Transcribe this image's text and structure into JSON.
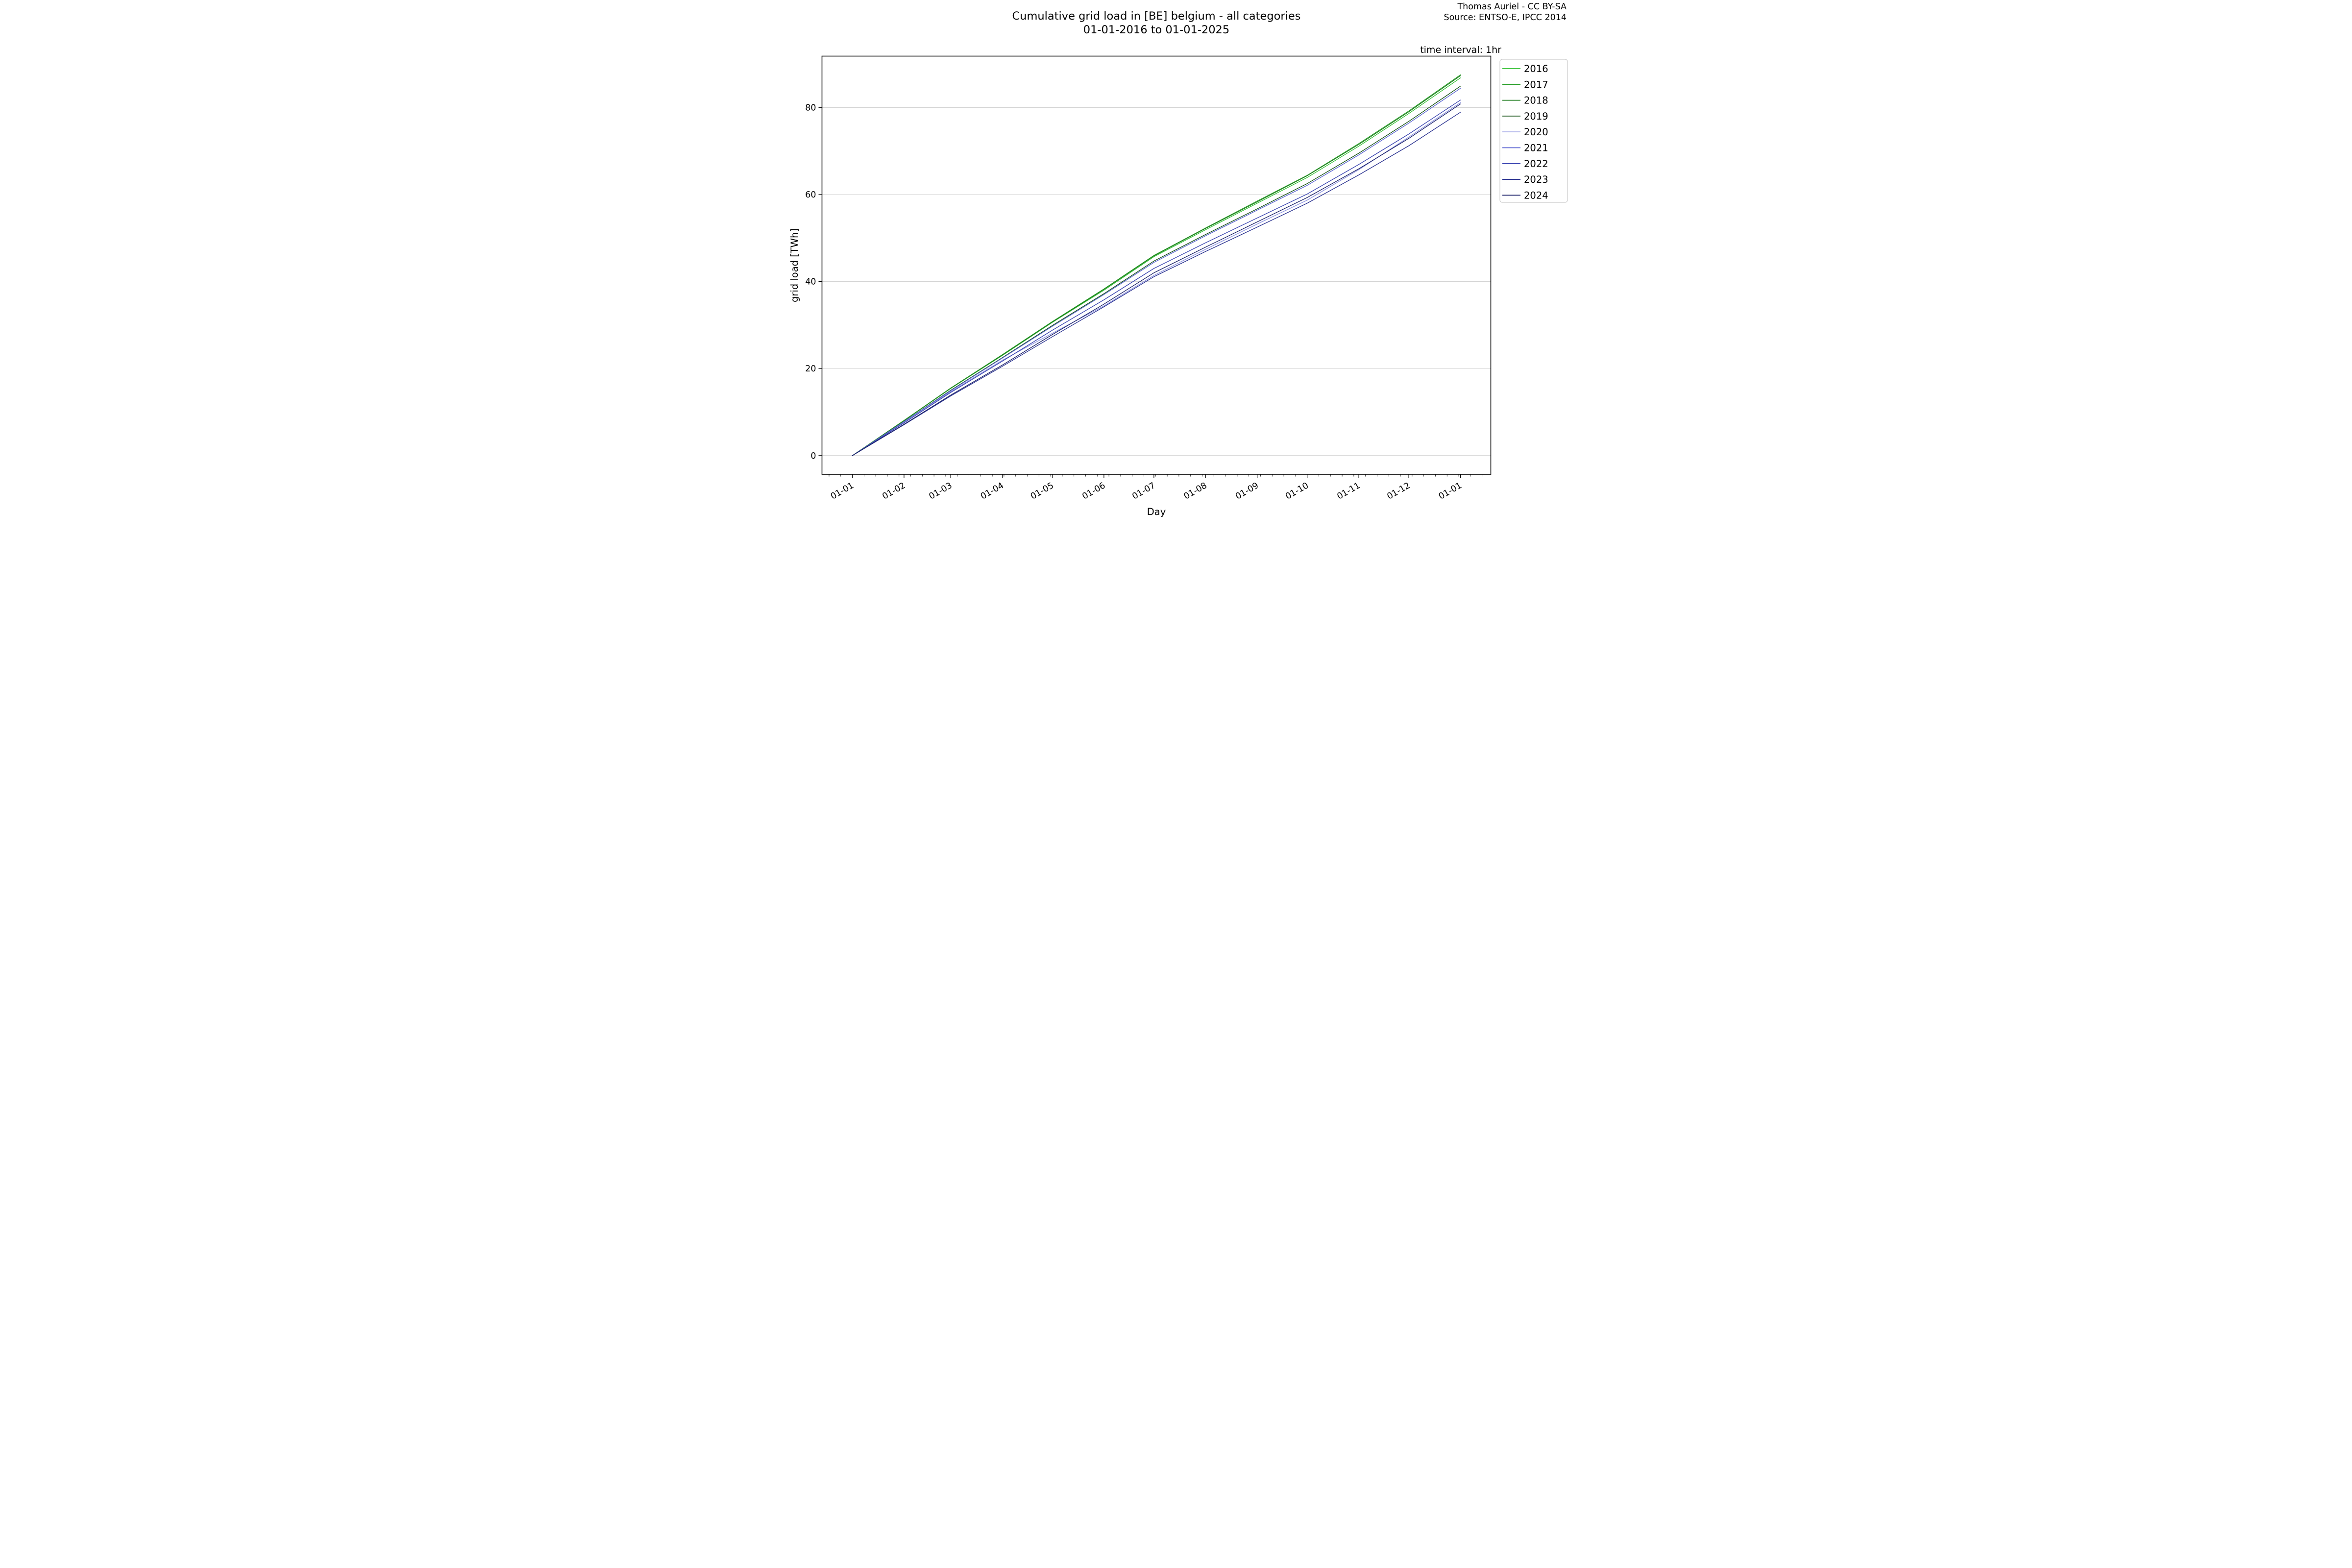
{
  "title": {
    "line1": "Cumulative grid load in [BE] belgium - all categories",
    "line2": "01-01-2016 to 01-01-2025"
  },
  "attribution": {
    "line1": "Thomas Auriel - CC BY-SA",
    "line2": "Source: ENTSO-E, IPCC 2014"
  },
  "annotation": "time interval: 1hr",
  "chart_data": {
    "type": "line",
    "title": "Cumulative grid load in [BE] belgium - all categories 01-01-2016 to 01-01-2025",
    "xlabel": "Day",
    "ylabel": "grid load [TWh]",
    "x_tick_labels": [
      "01-01",
      "01-02",
      "01-03",
      "01-04",
      "01-05",
      "01-06",
      "01-07",
      "01-08",
      "01-09",
      "01-10",
      "01-11",
      "01-12",
      "01-01"
    ],
    "x_tick_days": [
      0,
      31,
      59,
      90,
      120,
      151,
      181,
      212,
      243,
      273,
      304,
      334,
      365
    ],
    "x_minor_tick_interval_days": 7,
    "xlim_days": [
      -18.25,
      383.25
    ],
    "yticks": [
      0,
      20,
      40,
      60,
      80
    ],
    "ylim": [
      -4.3,
      91.8
    ],
    "grid": "horizontal",
    "grid_color": "#bababa",
    "legend_position": "outside-top-right",
    "x_days": [
      0,
      31,
      59,
      90,
      120,
      151,
      181,
      212,
      243,
      273,
      304,
      334,
      365
    ],
    "series": [
      {
        "name": "2016",
        "color": "#33c133",
        "total_TWh": 86.8,
        "values_cumulative_TWh": [
          0,
          8.0,
          15.4,
          23.0,
          30.6,
          38.0,
          45.7,
          51.9,
          58.0,
          63.9,
          71.1,
          78.6,
          86.8
        ]
      },
      {
        "name": "2017",
        "color": "#2aa02a",
        "total_TWh": 87.5,
        "values_cumulative_TWh": [
          0,
          8.1,
          15.5,
          23.2,
          30.8,
          38.3,
          46.0,
          52.3,
          58.5,
          64.4,
          71.7,
          79.2,
          87.5
        ]
      },
      {
        "name": "2018",
        "color": "#1f7d1f",
        "total_TWh": 87.3,
        "values_cumulative_TWh": [
          0,
          8.0,
          15.5,
          23.1,
          30.7,
          38.2,
          45.9,
          52.2,
          58.3,
          64.3,
          71.5,
          79.0,
          87.3
        ]
      },
      {
        "name": "2019",
        "color": "#135013",
        "total_TWh": 84.9,
        "values_cumulative_TWh": [
          0,
          7.8,
          15.0,
          22.5,
          29.9,
          37.2,
          44.7,
          50.8,
          56.7,
          62.5,
          69.5,
          76.8,
          84.9
        ]
      },
      {
        "name": "2020",
        "color": "#8c92e0",
        "total_TWh": 81.1,
        "values_cumulative_TWh": [
          0,
          7.6,
          14.7,
          21.9,
          28.1,
          34.4,
          41.4,
          47.4,
          53.2,
          58.7,
          65.7,
          73.2,
          81.1
        ]
      },
      {
        "name": "2021",
        "color": "#5a63d2",
        "total_TWh": 84.4,
        "values_cumulative_TWh": [
          0,
          7.8,
          14.9,
          22.4,
          29.7,
          37.0,
          44.4,
          50.5,
          56.4,
          62.1,
          69.1,
          76.4,
          84.4
        ]
      },
      {
        "name": "2022",
        "color": "#3943b0",
        "total_TWh": 81.7,
        "values_cumulative_TWh": [
          0,
          7.5,
          14.5,
          21.7,
          28.8,
          35.8,
          43.0,
          48.9,
          54.6,
          60.1,
          66.9,
          73.9,
          81.7
        ]
      },
      {
        "name": "2023",
        "color": "#28308f",
        "total_TWh": 78.9,
        "values_cumulative_TWh": [
          0,
          7.1,
          13.7,
          20.5,
          27.3,
          34.2,
          41.1,
          46.9,
          52.5,
          58.0,
          64.5,
          71.2,
          78.9
        ]
      },
      {
        "name": "2024",
        "color": "#1b2169",
        "total_TWh": 80.8,
        "values_cumulative_TWh": [
          0,
          7.2,
          13.9,
          20.8,
          27.8,
          34.8,
          42.0,
          47.9,
          53.7,
          59.3,
          65.9,
          72.9,
          80.8
        ]
      }
    ]
  }
}
